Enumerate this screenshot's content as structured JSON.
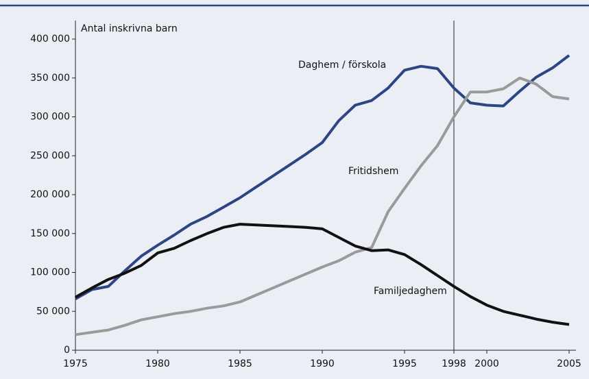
{
  "chart_data": {
    "type": "line",
    "y_label": "Antal inskrivna barn",
    "x": [
      1975,
      1976,
      1977,
      1978,
      1979,
      1980,
      1981,
      1982,
      1983,
      1984,
      1985,
      1986,
      1987,
      1988,
      1989,
      1990,
      1991,
      1992,
      1993,
      1994,
      1995,
      1996,
      1997,
      1998,
      1999,
      2000,
      2001,
      2002,
      2003,
      2004,
      2005
    ],
    "series": [
      {
        "name": "Daghem / förskola",
        "color": "#2e4583",
        "values": [
          66000,
          78000,
          82000,
          102000,
          121000,
          135000,
          148000,
          162000,
          172000,
          184000,
          196000,
          210000,
          224000,
          238000,
          252000,
          267000,
          295000,
          315000,
          321000,
          337000,
          360000,
          365000,
          362000,
          337000,
          318000,
          315000,
          314000,
          333000,
          351000,
          363000,
          379000
        ]
      },
      {
        "name": "Fritidshem",
        "color": "#9a9a9a",
        "values": [
          20000,
          23000,
          26000,
          32000,
          39000,
          43000,
          47000,
          50000,
          54000,
          57000,
          62000,
          71000,
          80000,
          89000,
          98000,
          107000,
          115000,
          126000,
          132000,
          178000,
          208000,
          237000,
          263000,
          300000,
          332000,
          332000,
          336000,
          350000,
          342000,
          326000,
          323000
        ]
      },
      {
        "name": "Familjedaghem",
        "color": "#111111",
        "values": [
          68000,
          80000,
          91000,
          99000,
          109000,
          125000,
          131000,
          141000,
          150000,
          158000,
          162000,
          161000,
          160000,
          159000,
          158000,
          156000,
          145000,
          134000,
          128000,
          129000,
          123000,
          110000,
          96000,
          82000,
          69000,
          58000,
          50000,
          45000,
          40000,
          36000,
          33000
        ]
      }
    ],
    "xlim": [
      1975,
      2005
    ],
    "xticks": [
      1975,
      1980,
      1985,
      1990,
      1995,
      1998,
      2000,
      2005
    ],
    "ylim": [
      0,
      400000
    ],
    "yticks": [
      {
        "value": 0,
        "label": "0"
      },
      {
        "value": 50000,
        "label": "50 000"
      },
      {
        "value": 100000,
        "label": "100 000"
      },
      {
        "value": 150000,
        "label": "150 000"
      },
      {
        "value": 200000,
        "label": "200 000"
      },
      {
        "value": 250000,
        "label": "250 000"
      },
      {
        "value": 300000,
        "label": "300 000"
      },
      {
        "value": 350000,
        "label": "350 000"
      },
      {
        "value": 400000,
        "label": "400 000"
      }
    ],
    "vline": 1998,
    "grid": false
  }
}
